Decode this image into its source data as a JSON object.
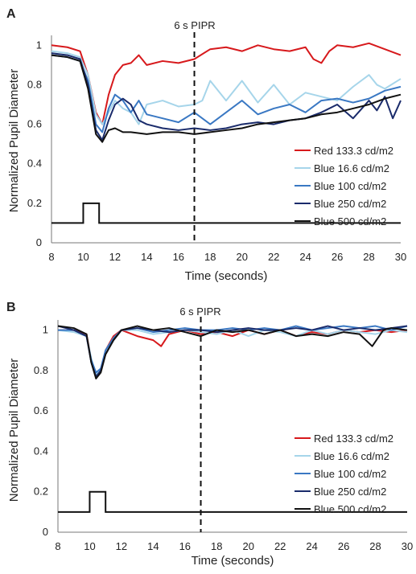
{
  "chart_data": [
    {
      "type": "line",
      "panel_label": "A",
      "annotation": "6 s PIPR",
      "annotation_x": 17,
      "xlabel": "Time (seconds)",
      "ylabel": "Normalized Pupil Diameter",
      "xlim": [
        8,
        30
      ],
      "ylim": [
        0,
        1.05
      ],
      "xticks": [
        8,
        10,
        12,
        14,
        16,
        18,
        20,
        22,
        24,
        26,
        28,
        30
      ],
      "yticks": [
        0,
        0.2,
        0.4,
        0.6,
        0.8,
        1
      ],
      "ytick_labels": [
        "0",
        "0.2",
        "0.4",
        "0.6",
        "0.8",
        "1"
      ],
      "grid": false,
      "legend_position": "lower-right",
      "stimulus": {
        "x": [
          8,
          10,
          10,
          11,
          11,
          30
        ],
        "y": [
          0.1,
          0.1,
          0.2,
          0.2,
          0.1,
          0.1
        ]
      },
      "series": [
        {
          "name": "Red 133.3 cd/m2",
          "color": "#d7191c",
          "x": [
            8,
            9,
            9.8,
            10.3,
            10.8,
            11.2,
            11.6,
            12,
            12.5,
            13,
            13.5,
            14,
            15,
            16,
            17,
            18,
            19,
            20,
            21,
            22,
            23,
            24,
            24.5,
            25,
            25.5,
            26,
            27,
            28,
            29,
            30
          ],
          "y": [
            1.0,
            0.99,
            0.97,
            0.85,
            0.66,
            0.6,
            0.75,
            0.85,
            0.9,
            0.91,
            0.95,
            0.9,
            0.92,
            0.91,
            0.93,
            0.98,
            0.99,
            0.97,
            1.0,
            0.98,
            0.97,
            0.99,
            0.93,
            0.91,
            0.97,
            1.0,
            0.99,
            1.01,
            0.98,
            0.95
          ]
        },
        {
          "name": "Blue 16.6 cd/m2",
          "color": "#a6d5ea",
          "x": [
            8,
            9,
            9.8,
            10.3,
            10.8,
            11.2,
            11.6,
            12,
            12.5,
            13,
            13.5,
            14,
            15,
            16,
            17,
            17.5,
            18,
            19,
            20,
            21,
            22,
            23,
            24,
            25,
            26,
            27,
            28,
            28.5,
            29,
            30
          ],
          "y": [
            0.97,
            0.96,
            0.94,
            0.85,
            0.65,
            0.6,
            0.66,
            0.72,
            0.68,
            0.66,
            0.6,
            0.7,
            0.72,
            0.69,
            0.7,
            0.72,
            0.82,
            0.72,
            0.82,
            0.71,
            0.8,
            0.7,
            0.76,
            0.74,
            0.72,
            0.79,
            0.85,
            0.8,
            0.78,
            0.83
          ]
        },
        {
          "name": "Blue 100 cd/m2",
          "color": "#3a78c3",
          "x": [
            8,
            9,
            9.8,
            10.3,
            10.8,
            11.2,
            11.6,
            12,
            12.5,
            13,
            13.5,
            14,
            15,
            16,
            17,
            18,
            19,
            20,
            21,
            22,
            23,
            24,
            25,
            26,
            27,
            28,
            29,
            30
          ],
          "y": [
            0.95,
            0.94,
            0.92,
            0.82,
            0.6,
            0.56,
            0.68,
            0.75,
            0.72,
            0.66,
            0.72,
            0.65,
            0.63,
            0.61,
            0.66,
            0.6,
            0.66,
            0.72,
            0.65,
            0.68,
            0.7,
            0.66,
            0.72,
            0.73,
            0.71,
            0.73,
            0.77,
            0.79
          ]
        },
        {
          "name": "Blue 250 cd/m2",
          "color": "#1a2b6b",
          "x": [
            8,
            9,
            9.8,
            10.3,
            10.8,
            11.2,
            11.6,
            12,
            12.5,
            13,
            13.5,
            14,
            15,
            16,
            17,
            18,
            19,
            20,
            21,
            22,
            23,
            24,
            25,
            26,
            27,
            28,
            28.5,
            29,
            29.5,
            30
          ],
          "y": [
            0.96,
            0.95,
            0.93,
            0.8,
            0.57,
            0.52,
            0.62,
            0.7,
            0.73,
            0.7,
            0.62,
            0.6,
            0.58,
            0.57,
            0.58,
            0.57,
            0.58,
            0.6,
            0.61,
            0.6,
            0.62,
            0.63,
            0.66,
            0.7,
            0.63,
            0.72,
            0.67,
            0.74,
            0.63,
            0.72
          ]
        },
        {
          "name": "Blue 500 cd/m2",
          "color": "#111111",
          "x": [
            8,
            9,
            9.8,
            10.3,
            10.8,
            11.2,
            11.6,
            12,
            12.5,
            13,
            14,
            15,
            16,
            17,
            18,
            19,
            20,
            21,
            22,
            23,
            24,
            25,
            26,
            27,
            28,
            29,
            30
          ],
          "y": [
            0.95,
            0.94,
            0.92,
            0.78,
            0.55,
            0.51,
            0.57,
            0.58,
            0.56,
            0.56,
            0.55,
            0.56,
            0.56,
            0.55,
            0.56,
            0.57,
            0.58,
            0.6,
            0.61,
            0.62,
            0.63,
            0.65,
            0.66,
            0.68,
            0.7,
            0.73,
            0.75
          ]
        }
      ]
    },
    {
      "type": "line",
      "panel_label": "B",
      "annotation": "6 s PIPR",
      "annotation_x": 17,
      "xlabel": "Time (seconds)",
      "ylabel": "Normalized Pupil Diameter",
      "xlim": [
        8,
        30
      ],
      "ylim": [
        0,
        1.05
      ],
      "xticks": [
        8,
        10,
        12,
        14,
        16,
        18,
        20,
        22,
        24,
        26,
        28,
        30
      ],
      "yticks": [
        0,
        0.2,
        0.4,
        0.6,
        0.8,
        1
      ],
      "ytick_labels": [
        "0",
        "0.2",
        "0.4",
        "0.6",
        "0.8",
        "1"
      ],
      "grid": false,
      "legend_position": "lower-right",
      "stimulus": {
        "x": [
          8,
          10,
          10,
          11,
          11,
          30
        ],
        "y": [
          0.1,
          0.1,
          0.2,
          0.2,
          0.1,
          0.1
        ]
      },
      "series": [
        {
          "name": "Red 133.3 cd/m2",
          "color": "#d7191c",
          "x": [
            8,
            9,
            9.8,
            10.1,
            10.4,
            10.7,
            11,
            11.5,
            12,
            13,
            14,
            14.5,
            15,
            16,
            17,
            18,
            19,
            20,
            21,
            22,
            23,
            24,
            25,
            26,
            27,
            28,
            29,
            30
          ],
          "y": [
            1.0,
            1.0,
            0.98,
            0.85,
            0.77,
            0.8,
            0.9,
            0.97,
            1.0,
            0.97,
            0.95,
            0.92,
            0.98,
            1.0,
            0.98,
            0.99,
            0.97,
            1.0,
            0.98,
            1.0,
            0.97,
            0.99,
            0.98,
            1.0,
            0.99,
            1.0,
            0.99,
            1.0
          ]
        },
        {
          "name": "Blue 16.6 cd/m2",
          "color": "#a6d5ea",
          "x": [
            8,
            9,
            9.8,
            10.1,
            10.4,
            10.7,
            11,
            11.5,
            12,
            13,
            14,
            15,
            16,
            17,
            18,
            19,
            20,
            21,
            22,
            23,
            24,
            25,
            26,
            27,
            28,
            29,
            30
          ],
          "y": [
            1.0,
            0.99,
            0.97,
            0.86,
            0.78,
            0.8,
            0.9,
            0.96,
            1.0,
            1.0,
            0.98,
            0.99,
            1.0,
            0.99,
            0.98,
            1.0,
            0.97,
            1.0,
            0.99,
            0.97,
            1.0,
            0.98,
            1.0,
            0.99,
            0.98,
            1.0,
            0.99
          ]
        },
        {
          "name": "Blue 100 cd/m2",
          "color": "#3a78c3",
          "x": [
            8,
            9,
            9.8,
            10.1,
            10.4,
            10.7,
            11,
            11.5,
            12,
            13,
            14,
            15,
            16,
            17,
            18,
            19,
            20,
            21,
            22,
            23,
            24,
            25,
            26,
            27,
            28,
            29,
            30
          ],
          "y": [
            1.0,
            1.0,
            0.97,
            0.85,
            0.79,
            0.81,
            0.9,
            0.96,
            1.0,
            1.01,
            0.99,
            1.0,
            1.01,
            1.0,
            1.0,
            1.01,
            1.0,
            1.01,
            1.0,
            1.02,
            1.0,
            1.01,
            1.02,
            1.01,
            1.02,
            1.0,
            1.02
          ]
        },
        {
          "name": "Blue 250 cd/m2",
          "color": "#1a2b6b",
          "x": [
            8,
            9,
            9.8,
            10.1,
            10.4,
            10.7,
            11,
            11.5,
            12,
            13,
            14,
            15,
            16,
            17,
            18,
            19,
            20,
            21,
            22,
            23,
            24,
            25,
            26,
            27,
            28,
            29,
            30
          ],
          "y": [
            1.02,
            1.0,
            0.97,
            0.84,
            0.77,
            0.8,
            0.88,
            0.95,
            1.0,
            1.01,
            1.0,
            0.99,
            1.0,
            1.0,
            0.99,
            1.0,
            1.01,
            1.0,
            1.0,
            1.01,
            1.0,
            1.02,
            1.0,
            1.01,
            1.0,
            1.01,
            1.02
          ]
        },
        {
          "name": "Blue 500 cd/m2",
          "color": "#111111",
          "x": [
            8,
            9,
            9.8,
            10.1,
            10.4,
            10.7,
            11,
            11.5,
            12,
            13,
            14,
            15,
            16,
            17,
            18,
            19,
            20,
            21,
            22,
            23,
            24,
            25,
            26,
            27,
            27.8,
            28.5,
            29,
            30
          ],
          "y": [
            1.02,
            1.01,
            0.98,
            0.84,
            0.76,
            0.79,
            0.88,
            0.95,
            1.0,
            1.02,
            1.0,
            1.01,
            0.99,
            0.97,
            1.0,
            0.99,
            1.0,
            0.98,
            1.0,
            0.97,
            0.98,
            0.97,
            0.99,
            0.98,
            0.92,
            1.0,
            1.01,
            1.0
          ]
        }
      ]
    }
  ]
}
